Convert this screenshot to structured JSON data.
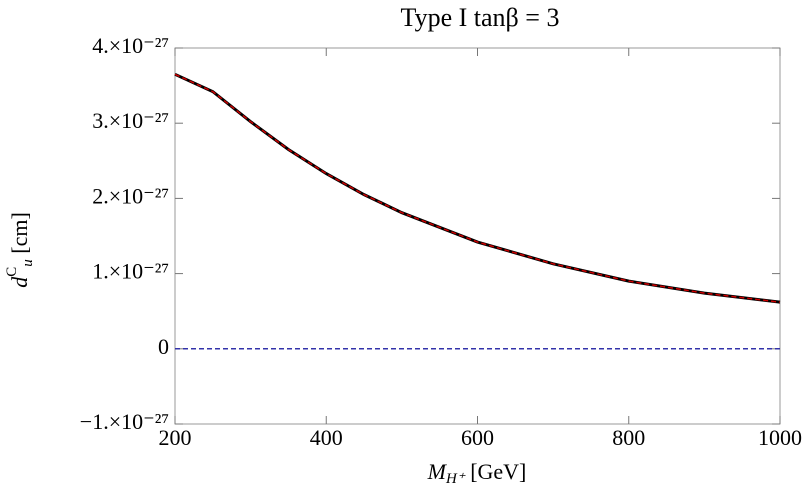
{
  "chart_data": {
    "type": "line",
    "title": "Type I     tanβ = 3",
    "x_label": {
      "main": "M",
      "sub": "H⁺",
      "rest": " [GeV]"
    },
    "y_label": {
      "main": "d",
      "sup": "C",
      "sub": "u",
      "rest": " [cm]"
    },
    "x": [
      200,
      250,
      300,
      350,
      400,
      450,
      500,
      600,
      700,
      800,
      900,
      1000
    ],
    "series": [
      {
        "color": "#000000",
        "dashed": false,
        "values": [
          3.65e-27,
          3.42e-27,
          3.02e-27,
          2.65e-27,
          2.33e-27,
          2.05e-27,
          1.81e-27,
          1.42e-27,
          1.13e-27,
          9e-28,
          7.4e-28,
          6.2e-28
        ]
      },
      {
        "color": "#cc0000",
        "dashed": true,
        "values": [
          3.65e-27,
          3.42e-27,
          3.02e-27,
          2.65e-27,
          2.33e-27,
          2.05e-27,
          1.81e-27,
          1.42e-27,
          1.13e-27,
          9e-28,
          7.4e-28,
          6.2e-28
        ]
      },
      {
        "color": "#3333aa",
        "dashed": true,
        "values": [
          0,
          0,
          0,
          0,
          0,
          0,
          0,
          0,
          0,
          0,
          0,
          0
        ]
      }
    ],
    "xlim": [
      200,
      1000
    ],
    "xticks": [
      200,
      400,
      600,
      800,
      1000
    ],
    "ylim": [
      -1e-27,
      4e-27
    ],
    "yticks": [
      {
        "value": -1e-27,
        "label": "−1.×10⁻²⁷"
      },
      0,
      {
        "value": 1e-27,
        "label": "1.×10⁻²⁷"
      },
      {
        "value": 2e-27,
        "label": "2.×10⁻²⁷"
      },
      {
        "value": 3e-27,
        "label": "3.×10⁻²⁷"
      },
      {
        "value": 4e-27,
        "label": "4.×10⁻²⁷"
      }
    ]
  }
}
